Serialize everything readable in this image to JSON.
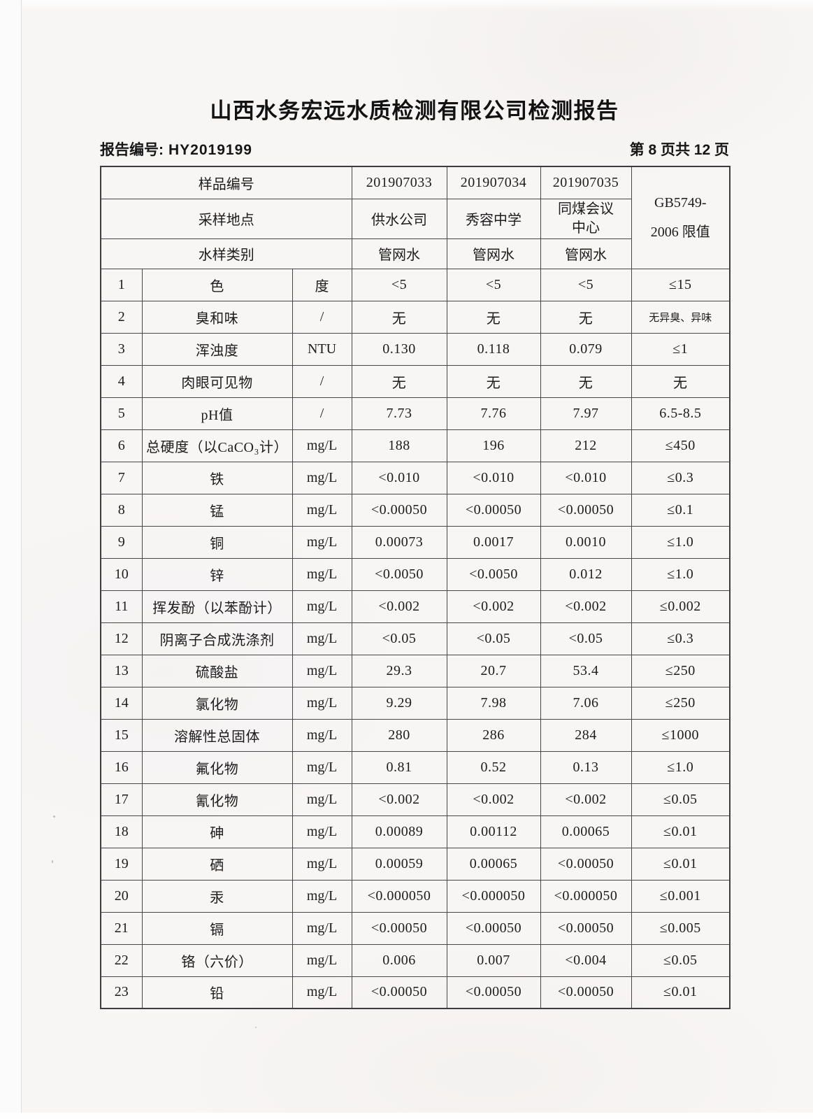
{
  "header": {
    "title": "山西水务宏远水质检测有限公司检测报告",
    "report_no_label": "报告编号:",
    "report_no_value": "HY2019199",
    "page_info": "第 8 页共 12 页"
  },
  "table": {
    "header_rows": {
      "sample_id": {
        "label": "样品编号",
        "values": [
          "201907033",
          "201907034",
          "201907035"
        ]
      },
      "location": {
        "label": "采样地点",
        "values": [
          "供水公司",
          "秀容中学",
          "同煤会议中心"
        ]
      },
      "water_type": {
        "label": "水样类别",
        "values": [
          "管网水",
          "管网水",
          "管网水"
        ]
      },
      "limit_header": {
        "line1": "GB5749-",
        "line2": "2006 限值"
      }
    },
    "rows": [
      {
        "no": "1",
        "name": "色",
        "unit": "度",
        "values": [
          "<5",
          "<5",
          "<5"
        ],
        "limit": "≤15"
      },
      {
        "no": "2",
        "name": "臭和味",
        "unit": "/",
        "values": [
          "无",
          "无",
          "无"
        ],
        "limit": "无异臭、异味"
      },
      {
        "no": "3",
        "name": "浑浊度",
        "unit": "NTU",
        "values": [
          "0.130",
          "0.118",
          "0.079"
        ],
        "limit": "≤1"
      },
      {
        "no": "4",
        "name": "肉眼可见物",
        "unit": "/",
        "values": [
          "无",
          "无",
          "无"
        ],
        "limit": "无"
      },
      {
        "no": "5",
        "name": "pH值",
        "unit": "/",
        "values": [
          "7.73",
          "7.76",
          "7.97"
        ],
        "limit": "6.5-8.5"
      },
      {
        "no": "6",
        "name": "总硬度（以CaCO₃计）",
        "unit": "mg/L",
        "values": [
          "188",
          "196",
          "212"
        ],
        "limit": "≤450"
      },
      {
        "no": "7",
        "name": "铁",
        "unit": "mg/L",
        "values": [
          "<0.010",
          "<0.010",
          "<0.010"
        ],
        "limit": "≤0.3"
      },
      {
        "no": "8",
        "name": "锰",
        "unit": "mg/L",
        "values": [
          "<0.00050",
          "<0.00050",
          "<0.00050"
        ],
        "limit": "≤0.1"
      },
      {
        "no": "9",
        "name": "铜",
        "unit": "mg/L",
        "values": [
          "0.00073",
          "0.0017",
          "0.0010"
        ],
        "limit": "≤1.0"
      },
      {
        "no": "10",
        "name": "锌",
        "unit": "mg/L",
        "values": [
          "<0.0050",
          "<0.0050",
          "0.012"
        ],
        "limit": "≤1.0"
      },
      {
        "no": "11",
        "name": "挥发酚（以苯酚计）",
        "unit": "mg/L",
        "values": [
          "<0.002",
          "<0.002",
          "<0.002"
        ],
        "limit": "≤0.002"
      },
      {
        "no": "12",
        "name": "阴离子合成洗涤剂",
        "unit": "mg/L",
        "values": [
          "<0.05",
          "<0.05",
          "<0.05"
        ],
        "limit": "≤0.3"
      },
      {
        "no": "13",
        "name": "硫酸盐",
        "unit": "mg/L",
        "values": [
          "29.3",
          "20.7",
          "53.4"
        ],
        "limit": "≤250"
      },
      {
        "no": "14",
        "name": "氯化物",
        "unit": "mg/L",
        "values": [
          "9.29",
          "7.98",
          "7.06"
        ],
        "limit": "≤250"
      },
      {
        "no": "15",
        "name": "溶解性总固体",
        "unit": "mg/L",
        "values": [
          "280",
          "286",
          "284"
        ],
        "limit": "≤1000"
      },
      {
        "no": "16",
        "name": "氟化物",
        "unit": "mg/L",
        "values": [
          "0.81",
          "0.52",
          "0.13"
        ],
        "limit": "≤1.0"
      },
      {
        "no": "17",
        "name": "氰化物",
        "unit": "mg/L",
        "values": [
          "<0.002",
          "<0.002",
          "<0.002"
        ],
        "limit": "≤0.05"
      },
      {
        "no": "18",
        "name": "砷",
        "unit": "mg/L",
        "values": [
          "0.00089",
          "0.00112",
          "0.00065"
        ],
        "limit": "≤0.01"
      },
      {
        "no": "19",
        "name": "硒",
        "unit": "mg/L",
        "values": [
          "0.00059",
          "0.00065",
          "<0.00050"
        ],
        "limit": "≤0.01"
      },
      {
        "no": "20",
        "name": "汞",
        "unit": "mg/L",
        "values": [
          "<0.000050",
          "<0.000050",
          "<0.000050"
        ],
        "limit": "≤0.001"
      },
      {
        "no": "21",
        "name": "镉",
        "unit": "mg/L",
        "values": [
          "<0.00050",
          "<0.00050",
          "<0.00050"
        ],
        "limit": "≤0.005"
      },
      {
        "no": "22",
        "name": "铬（六价）",
        "unit": "mg/L",
        "values": [
          "0.006",
          "0.007",
          "<0.004"
        ],
        "limit": "≤0.05"
      },
      {
        "no": "23",
        "name": "铅",
        "unit": "mg/L",
        "values": [
          "<0.00050",
          "<0.00050",
          "<0.00050"
        ],
        "limit": "≤0.01"
      }
    ]
  }
}
